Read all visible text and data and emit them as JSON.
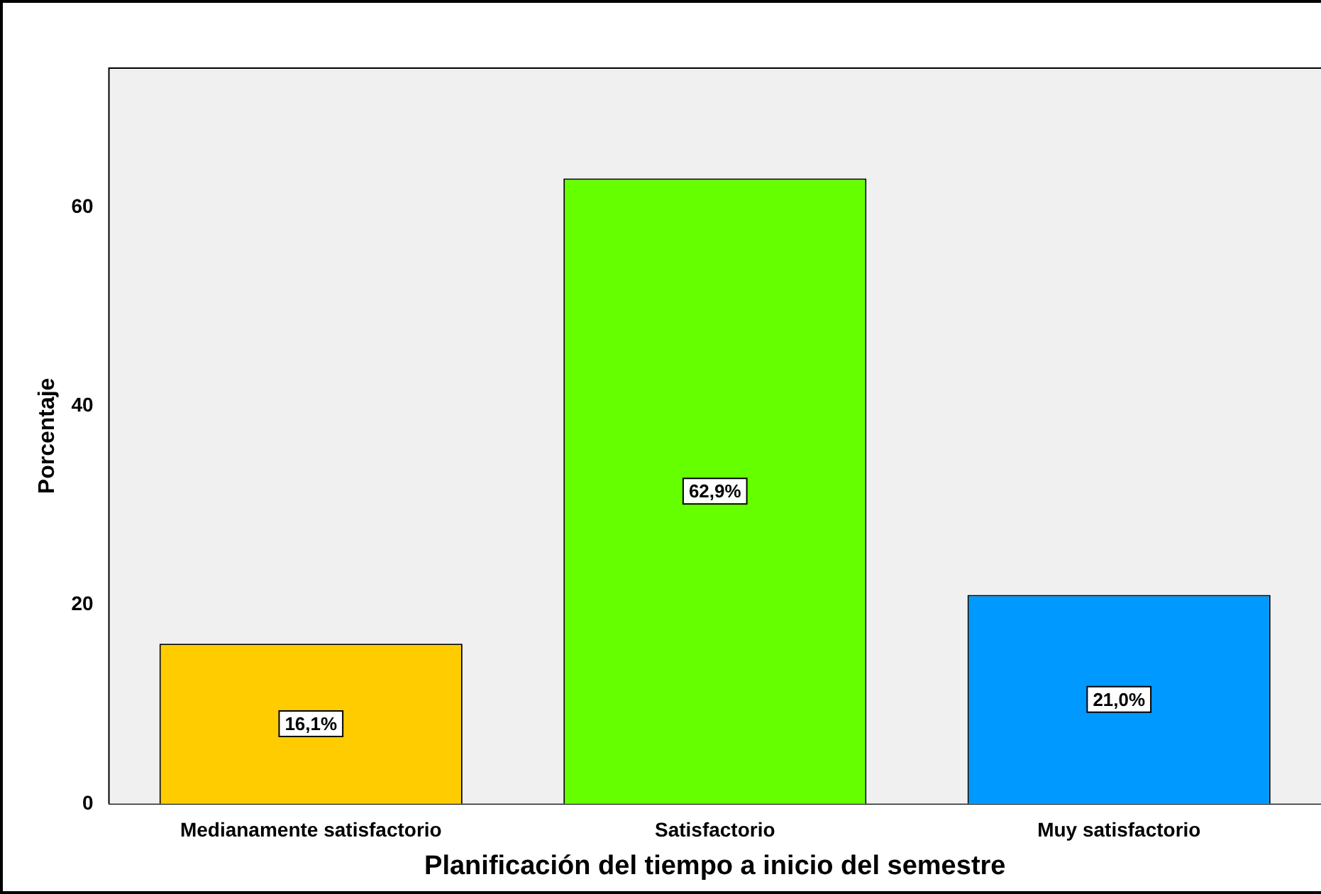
{
  "chart_data": {
    "type": "bar",
    "xlabel": "Planificación del tiempo a inicio del semestre",
    "ylabel": "Porcentaje",
    "categories": [
      "Medianamente satisfactorio",
      "Satisfactorio",
      "Muy satisfactorio"
    ],
    "values": [
      16.1,
      62.9,
      21.0
    ],
    "colors": [
      "#ffcc00",
      "#66ff00",
      "#0099ff"
    ],
    "value_labels": [
      "16,1%",
      "62,9%",
      "21,0%"
    ],
    "ylim": [
      0,
      74
    ],
    "yticks": [
      0,
      20,
      40,
      60
    ],
    "grid": false,
    "legend": false
  }
}
